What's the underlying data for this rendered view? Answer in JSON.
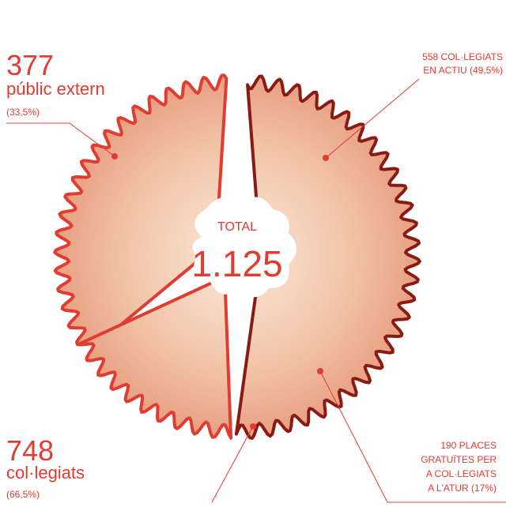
{
  "chart_data": {
    "type": "shaving-pie",
    "total_title": "TOTAL",
    "total": 1125,
    "total_value_label": "1.125",
    "groups": [
      {
        "value": 377,
        "name": "públic extern",
        "share_label": "(33,5%)"
      },
      {
        "value": 748,
        "name": "col·legiats",
        "share_label": "(66,5%)",
        "parts": [
          {
            "value": 558,
            "label_lines": [
              "558 COL·LEGIATS",
              "EN ACTIU (49,5%)"
            ]
          },
          {
            "value": 190,
            "label_lines": [
              "190 PLACES",
              "GRATUÏTES PER",
              "A COL·LEGIATS",
              "A L'ATUR (17%)"
            ]
          }
        ]
      }
    ],
    "color": "#e03c31"
  }
}
